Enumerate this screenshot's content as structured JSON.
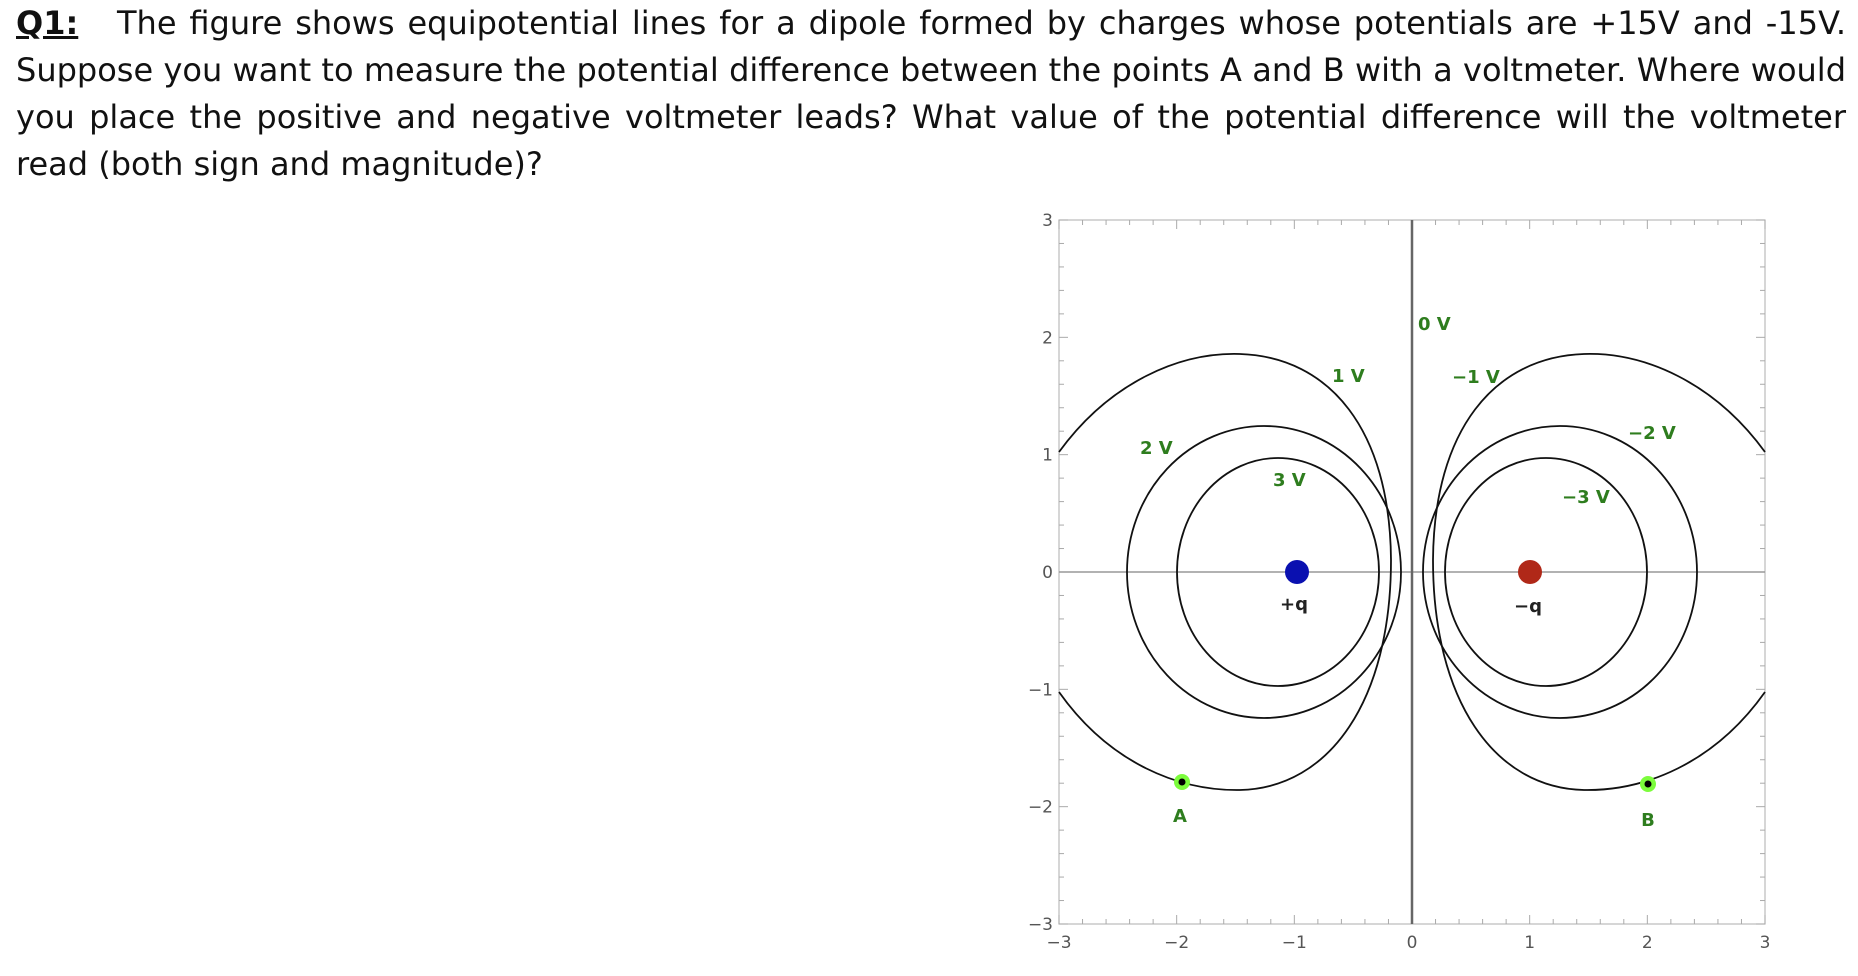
{
  "question": {
    "label": "Q1:",
    "text": "The figure shows equipotential lines for a dipole formed by charges whose potentials are +15V and -15V. Suppose you want to measure the potential difference between the points A and B with a voltmeter.  Where would you place the positive and negative voltmeter leads?  What value of the potential difference will the voltmeter read (both sign and magnitude)?"
  },
  "figure": {
    "x_ticks": [
      "−3",
      "−2",
      "−1",
      "0",
      "1",
      "2",
      "3"
    ],
    "y_ticks": [
      "3",
      "2",
      "1",
      "0",
      "−1",
      "−2",
      "−3"
    ],
    "xlim": [
      -3,
      3
    ],
    "ylim": [
      -3,
      3
    ],
    "equipotential_labels": {
      "v0": "0 V",
      "v_pos1": "1 V",
      "v_neg1": "−1 V",
      "v_pos2": "2 V",
      "v_neg2": "−2 V",
      "v_pos3": "3 V",
      "v_neg3": "−3 V"
    },
    "charges": {
      "positive": {
        "label": "+q",
        "x": -1,
        "y": 0,
        "color": "#0a10b0"
      },
      "negative": {
        "label": "−q",
        "x": 1,
        "y": 0,
        "color": "#b02818"
      }
    },
    "points": {
      "A": {
        "label": "A",
        "x": -2.0,
        "y": -1.8
      },
      "B": {
        "label": "B",
        "x": 2.0,
        "y": -1.8
      }
    },
    "colors": {
      "label_green": "#2e7d1e",
      "point_ring": "#7cfc3c",
      "axis_gray": "#888888"
    }
  }
}
